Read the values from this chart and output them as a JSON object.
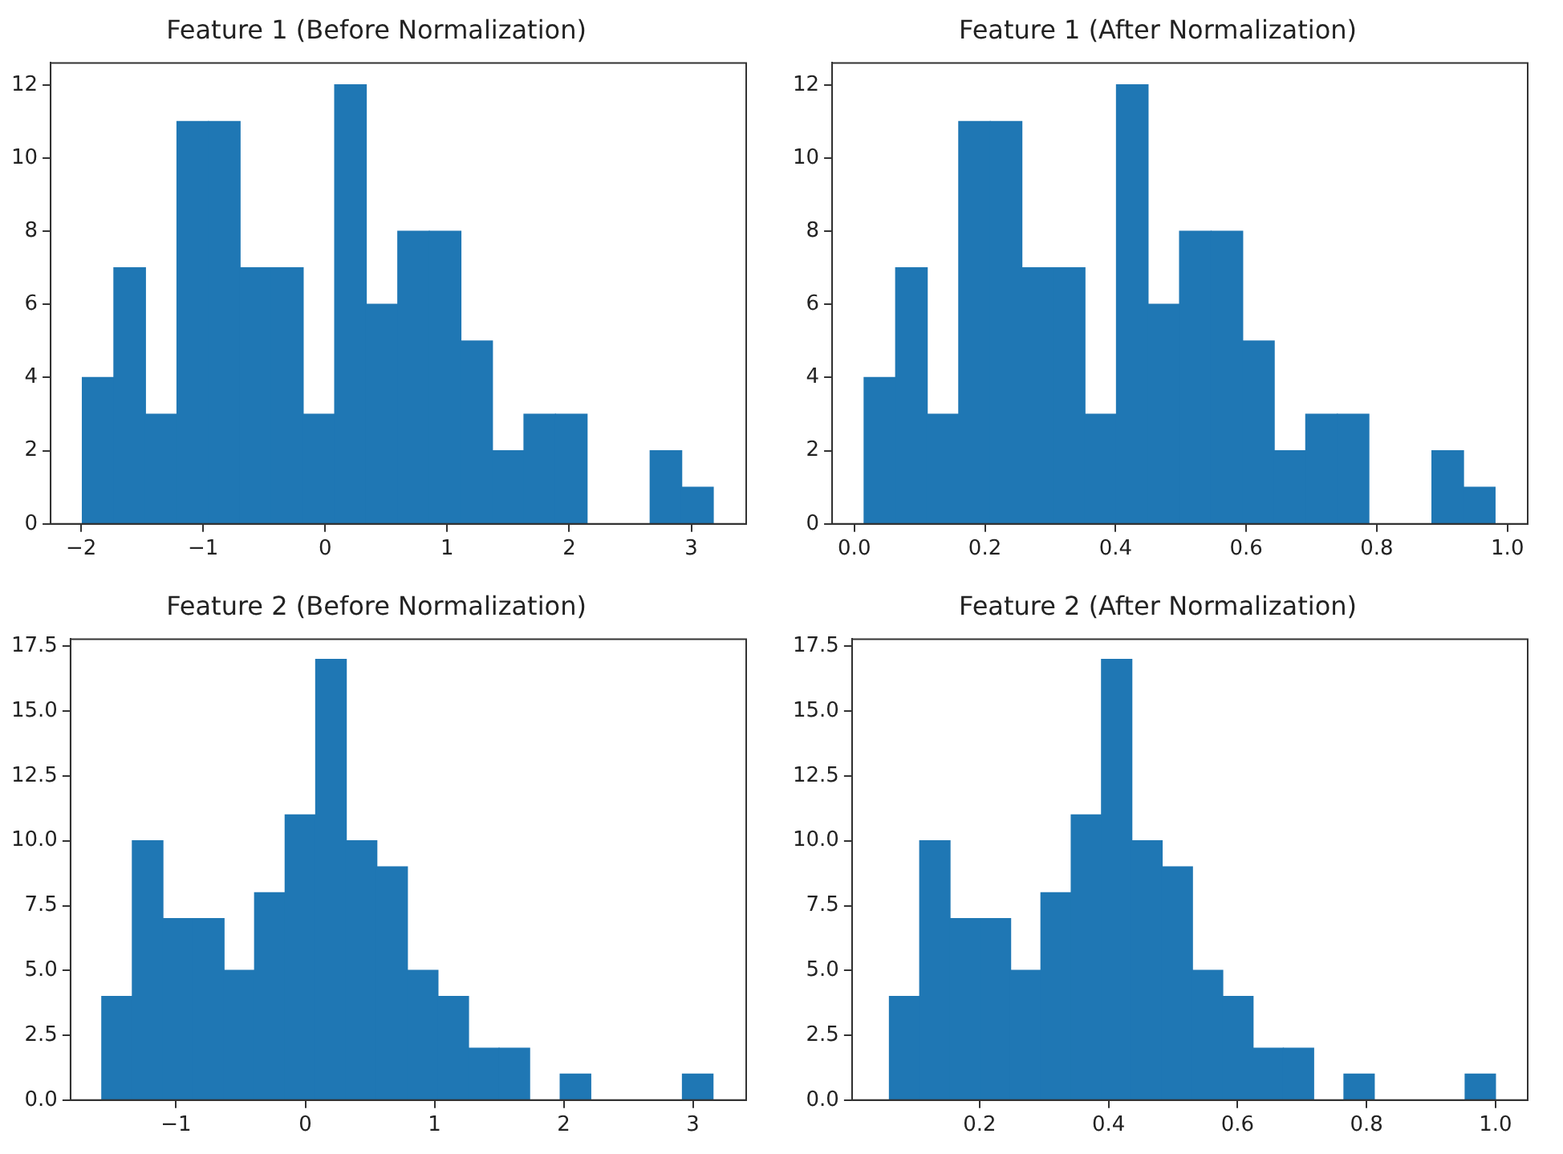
{
  "chart_data": [
    {
      "type": "histogram",
      "title": "Feature 1 (Before Normalization)",
      "color": "#1f77b4",
      "grid": false,
      "bins": [
        -1.99,
        -1.7315,
        -1.473,
        -1.2145,
        -0.956,
        -0.6975,
        -0.439,
        -0.1805,
        0.078,
        0.3365,
        0.595,
        0.8535,
        1.112,
        1.3705,
        1.629,
        1.8875,
        2.146,
        2.4045,
        2.663,
        2.9215,
        3.18
      ],
      "values": [
        4,
        7,
        3,
        11,
        11,
        7,
        7,
        3,
        12,
        6,
        8,
        8,
        5,
        2,
        3,
        3,
        0,
        0,
        2,
        1
      ],
      "xlim": [
        -2.25,
        3.45
      ],
      "xticks": [
        {
          "value": -2,
          "label": "−2"
        },
        {
          "value": -1,
          "label": "−1"
        },
        0,
        1,
        2,
        3
      ],
      "ylim": [
        0,
        12.6
      ],
      "yticks": [
        0,
        2,
        4,
        6,
        8,
        10,
        12
      ]
    },
    {
      "type": "histogram",
      "title": "Feature 1 (After Normalization)",
      "color": "#1f77b4",
      "grid": false,
      "bins": [
        0.015,
        0.0633,
        0.1116,
        0.1599,
        0.2082,
        0.2565,
        0.3048,
        0.3531,
        0.4014,
        0.4497,
        0.498,
        0.5463,
        0.5946,
        0.6429,
        0.6912,
        0.7395,
        0.7878,
        0.8361,
        0.8844,
        0.9327,
        0.981
      ],
      "values": [
        4,
        7,
        3,
        11,
        11,
        7,
        7,
        3,
        12,
        6,
        8,
        8,
        5,
        2,
        3,
        3,
        0,
        0,
        2,
        1
      ],
      "xlim": [
        -0.034,
        1.031
      ],
      "xticks": [
        {
          "value": 0,
          "label": "0.0"
        },
        0.2,
        0.4,
        0.6,
        0.8,
        {
          "value": 1,
          "label": "1.0"
        }
      ],
      "ylim": [
        0,
        12.6
      ],
      "yticks": [
        0,
        2,
        4,
        6,
        8,
        10,
        12
      ]
    },
    {
      "type": "histogram",
      "title": "Feature 2 (Before Normalization)",
      "color": "#1f77b4",
      "grid": false,
      "bins": [
        -1.575,
        -1.3385,
        -1.102,
        -0.8655,
        -0.629,
        -0.3925,
        -0.156,
        0.0805,
        0.317,
        0.5535,
        0.79,
        1.0265,
        1.263,
        1.4995,
        1.736,
        1.9725,
        2.209,
        2.4455,
        2.682,
        2.9185,
        3.155
      ],
      "values": [
        4,
        10,
        7,
        7,
        5,
        8,
        11,
        17,
        10,
        9,
        5,
        4,
        2,
        2,
        0,
        1,
        0,
        0,
        0,
        1
      ],
      "xlim": [
        -1.817,
        3.412
      ],
      "xticks": [
        {
          "value": -1,
          "label": "−1"
        },
        0,
        1,
        2,
        3
      ],
      "ylim": [
        0,
        17.78
      ],
      "yticks": [
        {
          "value": 0,
          "label": "0.0"
        },
        2.5,
        {
          "value": 5,
          "label": "5.0"
        },
        7.5,
        {
          "value": 10,
          "label": "10.0"
        },
        12.5,
        {
          "value": 15,
          "label": "15.0"
        },
        17.5
      ]
    },
    {
      "type": "histogram",
      "title": "Feature 2 (After Normalization)",
      "color": "#1f77b4",
      "grid": false,
      "bins": [
        0.06,
        0.107,
        0.154,
        0.201,
        0.248,
        0.295,
        0.342,
        0.389,
        0.436,
        0.483,
        0.53,
        0.577,
        0.624,
        0.671,
        0.718,
        0.765,
        0.812,
        0.859,
        0.906,
        0.953,
        1.0
      ],
      "values": [
        4,
        10,
        7,
        7,
        5,
        8,
        11,
        17,
        10,
        9,
        5,
        4,
        2,
        2,
        0,
        1,
        0,
        0,
        0,
        1
      ],
      "xlim": [
        0.002,
        1.05
      ],
      "xticks": [
        0.2,
        0.4,
        0.6,
        0.8,
        {
          "value": 1,
          "label": "1.0"
        }
      ],
      "ylim": [
        0,
        17.78
      ],
      "yticks": [
        {
          "value": 0,
          "label": "0.0"
        },
        2.5,
        {
          "value": 5,
          "label": "5.0"
        },
        7.5,
        {
          "value": 10,
          "label": "10.0"
        },
        12.5,
        {
          "value": 15,
          "label": "15.0"
        },
        17.5
      ]
    }
  ]
}
